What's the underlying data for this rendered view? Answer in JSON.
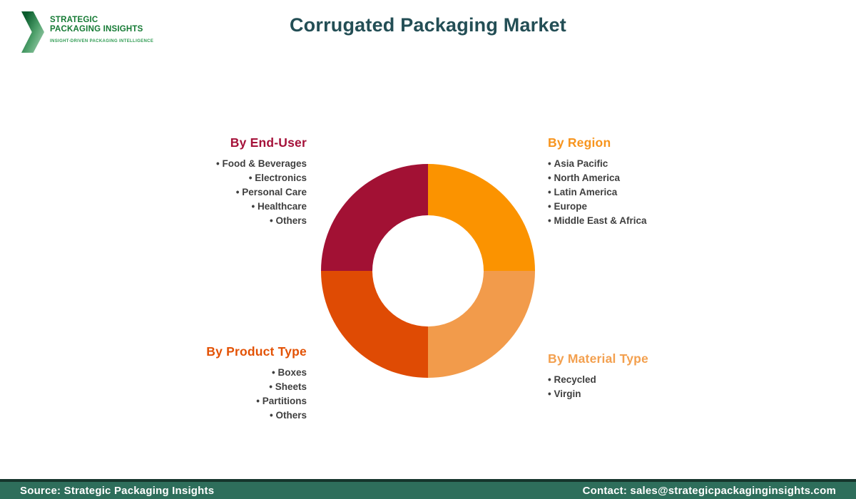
{
  "brand": {
    "line1": "STRATEGIC",
    "line2": "PACKAGING INSIGHTS",
    "tagline": "INSIGHT-DRIVEN PACKAGING INTELLIGENCE"
  },
  "header": {
    "title": "Corrugated Packaging Market"
  },
  "colors": {
    "title_text": "#234e55",
    "body_text": "#3f3f3f",
    "footer_bg": "#2e6e5b",
    "footer_border": "#16352c",
    "logo_green_dark": "#0a5c2d",
    "logo_green_light": "#a9d4b6"
  },
  "chart_data": {
    "type": "pie",
    "subtype": "donut",
    "title": "Corrugated Packaging Market segmentation",
    "inner_radius_ratio": 0.52,
    "start_angle_deg": 0,
    "direction": "clockwise",
    "segments": [
      {
        "label": "By Region",
        "value": 25,
        "color": "#fb9300",
        "position": "top-right"
      },
      {
        "label": "By Material Type",
        "value": 25,
        "color": "#f29b4b",
        "position": "bottom-right"
      },
      {
        "label": "By Product Type",
        "value": 25,
        "color": "#df4b04",
        "position": "bottom-left"
      },
      {
        "label": "By End-User",
        "value": 25,
        "color": "#a21134",
        "position": "top-left"
      }
    ]
  },
  "groups": {
    "end_user": {
      "title": "By End-User",
      "title_color": "#a5123a",
      "items": [
        "Food & Beverages",
        "Electronics",
        "Personal Care",
        "Healthcare",
        "Others"
      ]
    },
    "region": {
      "title": "By Region",
      "title_color": "#f7941d",
      "items": [
        "Asia Pacific",
        "North America",
        "Latin America",
        "Europe",
        "Middle East & Africa"
      ]
    },
    "product_type": {
      "title": "By Product Type",
      "title_color": "#e35205",
      "items": [
        "Boxes",
        "Sheets",
        "Partitions",
        "Others"
      ]
    },
    "material_type": {
      "title": "By Material Type",
      "title_color": "#f3a04f",
      "items": [
        "Recycled",
        "Virgin"
      ]
    }
  },
  "footer": {
    "source": "Source: Strategic Packaging Insights",
    "contact": "Contact: sales@strategicpackaginginsights.com"
  }
}
